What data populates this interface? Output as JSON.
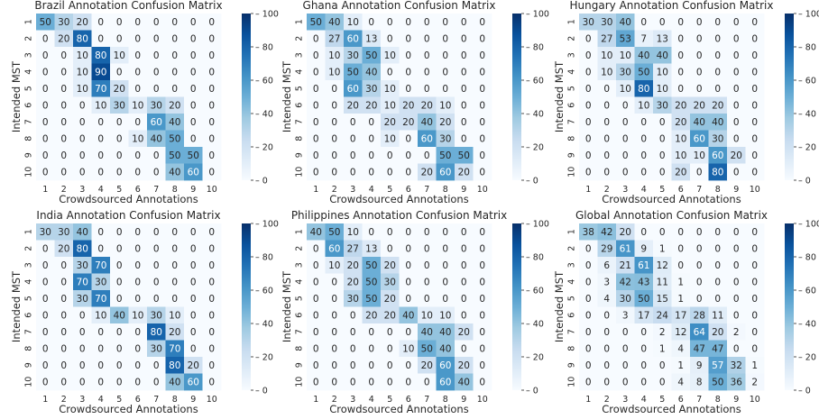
{
  "chart_data": [
    {
      "type": "heatmap",
      "title": "Brazil Annotation Confusion Matrix",
      "xlabel": "Crowdsourced Annotations",
      "ylabel": "Intended MST",
      "x_categories": [
        "1",
        "2",
        "3",
        "4",
        "5",
        "6",
        "7",
        "8",
        "9",
        "10"
      ],
      "y_categories": [
        "1",
        "2",
        "3",
        "4",
        "5",
        "6",
        "7",
        "8",
        "9",
        "10"
      ],
      "color_range": [
        0,
        100
      ],
      "colorbar_ticks": [
        "0",
        "20",
        "40",
        "60",
        "80",
        "100"
      ],
      "values": [
        [
          50,
          30,
          20,
          0,
          0,
          0,
          0,
          0,
          0,
          0
        ],
        [
          0,
          20,
          80,
          0,
          0,
          0,
          0,
          0,
          0,
          0
        ],
        [
          0,
          0,
          10,
          80,
          10,
          0,
          0,
          0,
          0,
          0
        ],
        [
          0,
          0,
          10,
          90,
          0,
          0,
          0,
          0,
          0,
          0
        ],
        [
          0,
          0,
          10,
          70,
          20,
          0,
          0,
          0,
          0,
          0
        ],
        [
          0,
          0,
          0,
          10,
          30,
          10,
          30,
          20,
          0,
          0
        ],
        [
          0,
          0,
          0,
          0,
          0,
          0,
          60,
          40,
          0,
          0
        ],
        [
          0,
          0,
          0,
          0,
          0,
          10,
          40,
          50,
          0,
          0
        ],
        [
          0,
          0,
          0,
          0,
          0,
          0,
          0,
          50,
          50,
          0
        ],
        [
          0,
          0,
          0,
          0,
          0,
          0,
          0,
          40,
          60,
          0
        ]
      ]
    },
    {
      "type": "heatmap",
      "title": "Ghana Annotation Confusion Matrix",
      "xlabel": "Crowdsourced Annotations",
      "ylabel": "Intended MST",
      "x_categories": [
        "1",
        "2",
        "3",
        "4",
        "5",
        "6",
        "7",
        "8",
        "9",
        "10"
      ],
      "y_categories": [
        "1",
        "2",
        "3",
        "4",
        "5",
        "6",
        "7",
        "8",
        "9",
        "10"
      ],
      "color_range": [
        0,
        100
      ],
      "colorbar_ticks": [
        "0",
        "20",
        "40",
        "60",
        "80",
        "100"
      ],
      "values": [
        [
          50,
          40,
          10,
          0,
          0,
          0,
          0,
          0,
          0,
          0
        ],
        [
          0,
          27,
          60,
          13,
          0,
          0,
          0,
          0,
          0,
          0
        ],
        [
          0,
          10,
          30,
          50,
          10,
          0,
          0,
          0,
          0,
          0
        ],
        [
          0,
          10,
          50,
          40,
          0,
          0,
          0,
          0,
          0,
          0
        ],
        [
          0,
          0,
          60,
          30,
          10,
          0,
          0,
          0,
          0,
          0
        ],
        [
          0,
          0,
          20,
          20,
          10,
          20,
          20,
          10,
          0,
          0
        ],
        [
          0,
          0,
          0,
          0,
          20,
          20,
          40,
          20,
          0,
          0
        ],
        [
          0,
          0,
          0,
          0,
          10,
          0,
          60,
          30,
          0,
          0
        ],
        [
          0,
          0,
          0,
          0,
          0,
          0,
          0,
          50,
          50,
          0
        ],
        [
          0,
          0,
          0,
          0,
          0,
          0,
          20,
          60,
          20,
          0
        ]
      ]
    },
    {
      "type": "heatmap",
      "title": "Hungary Annotation Confusion Matrix",
      "xlabel": "Crowdsourced Annotations",
      "ylabel": "Intended MST",
      "x_categories": [
        "1",
        "2",
        "3",
        "4",
        "5",
        "6",
        "7",
        "8",
        "9",
        "10"
      ],
      "y_categories": [
        "1",
        "2",
        "3",
        "4",
        "5",
        "6",
        "7",
        "8",
        "9",
        "10"
      ],
      "color_range": [
        0,
        100
      ],
      "colorbar_ticks": [
        "0",
        "20",
        "40",
        "60",
        "80",
        "100"
      ],
      "values": [
        [
          30,
          30,
          40,
          0,
          0,
          0,
          0,
          0,
          0,
          0
        ],
        [
          0,
          27,
          53,
          7,
          13,
          0,
          0,
          0,
          0,
          0
        ],
        [
          0,
          10,
          10,
          40,
          40,
          0,
          0,
          0,
          0,
          0
        ],
        [
          0,
          10,
          30,
          50,
          10,
          0,
          0,
          0,
          0,
          0
        ],
        [
          0,
          0,
          10,
          80,
          10,
          0,
          0,
          0,
          0,
          0
        ],
        [
          0,
          0,
          0,
          10,
          30,
          20,
          20,
          20,
          0,
          0
        ],
        [
          0,
          0,
          0,
          0,
          0,
          20,
          40,
          40,
          0,
          0
        ],
        [
          0,
          0,
          0,
          0,
          0,
          10,
          60,
          30,
          0,
          0
        ],
        [
          0,
          0,
          0,
          0,
          0,
          10,
          10,
          60,
          20,
          0
        ],
        [
          0,
          0,
          0,
          0,
          0,
          20,
          0,
          80,
          0,
          0
        ]
      ]
    },
    {
      "type": "heatmap",
      "title": "India Annotation Confusion Matrix",
      "xlabel": "Crowdsourced Annotations",
      "ylabel": "Intended MST",
      "x_categories": [
        "1",
        "2",
        "3",
        "4",
        "5",
        "6",
        "7",
        "8",
        "9",
        "10"
      ],
      "y_categories": [
        "1",
        "2",
        "3",
        "4",
        "5",
        "6",
        "7",
        "8",
        "9",
        "10"
      ],
      "color_range": [
        0,
        100
      ],
      "colorbar_ticks": [
        "0",
        "20",
        "40",
        "60",
        "80",
        "100"
      ],
      "values": [
        [
          30,
          30,
          40,
          0,
          0,
          0,
          0,
          0,
          0,
          0
        ],
        [
          0,
          20,
          80,
          0,
          0,
          0,
          0,
          0,
          0,
          0
        ],
        [
          0,
          0,
          30,
          70,
          0,
          0,
          0,
          0,
          0,
          0
        ],
        [
          0,
          0,
          70,
          30,
          0,
          0,
          0,
          0,
          0,
          0
        ],
        [
          0,
          0,
          30,
          70,
          0,
          0,
          0,
          0,
          0,
          0
        ],
        [
          0,
          0,
          0,
          10,
          40,
          10,
          30,
          10,
          0,
          0
        ],
        [
          0,
          0,
          0,
          0,
          0,
          0,
          80,
          20,
          0,
          0
        ],
        [
          0,
          0,
          0,
          0,
          0,
          0,
          30,
          70,
          0,
          0
        ],
        [
          0,
          0,
          0,
          0,
          0,
          0,
          0,
          80,
          20,
          0
        ],
        [
          0,
          0,
          0,
          0,
          0,
          0,
          0,
          40,
          60,
          0
        ]
      ]
    },
    {
      "type": "heatmap",
      "title": "Philippines Annotation Confusion Matrix",
      "xlabel": "Crowdsourced Annotations",
      "ylabel": "Intended MST",
      "x_categories": [
        "1",
        "2",
        "3",
        "4",
        "5",
        "6",
        "7",
        "8",
        "9",
        "10"
      ],
      "y_categories": [
        "1",
        "2",
        "3",
        "4",
        "5",
        "6",
        "7",
        "8",
        "9",
        "10"
      ],
      "color_range": [
        0,
        100
      ],
      "colorbar_ticks": [
        "0",
        "20",
        "40",
        "60",
        "80",
        "100"
      ],
      "values": [
        [
          40,
          50,
          10,
          0,
          0,
          0,
          0,
          0,
          0,
          0
        ],
        [
          0,
          60,
          27,
          13,
          0,
          0,
          0,
          0,
          0,
          0
        ],
        [
          0,
          10,
          20,
          50,
          20,
          0,
          0,
          0,
          0,
          0
        ],
        [
          0,
          0,
          20,
          50,
          30,
          0,
          0,
          0,
          0,
          0
        ],
        [
          0,
          0,
          30,
          50,
          20,
          0,
          0,
          0,
          0,
          0
        ],
        [
          0,
          0,
          0,
          20,
          20,
          40,
          10,
          10,
          0,
          0
        ],
        [
          0,
          0,
          0,
          0,
          0,
          0,
          40,
          40,
          20,
          0
        ],
        [
          0,
          0,
          0,
          0,
          0,
          10,
          50,
          40,
          0,
          0
        ],
        [
          0,
          0,
          0,
          0,
          0,
          0,
          20,
          60,
          20,
          0
        ],
        [
          0,
          0,
          0,
          0,
          0,
          0,
          0,
          60,
          40,
          0
        ]
      ]
    },
    {
      "type": "heatmap",
      "title": "Global Annotation Confusion Matrix",
      "xlabel": "Crowdsourced Annotations",
      "ylabel": "Intended MST",
      "x_categories": [
        "1",
        "2",
        "3",
        "4",
        "5",
        "6",
        "7",
        "8",
        "9",
        "10"
      ],
      "y_categories": [
        "1",
        "2",
        "3",
        "4",
        "5",
        "6",
        "7",
        "8",
        "9",
        "10"
      ],
      "color_range": [
        0,
        100
      ],
      "colorbar_ticks": [
        "0",
        "20",
        "40",
        "60",
        "80",
        "100"
      ],
      "values": [
        [
          38,
          42,
          20,
          0,
          0,
          0,
          0,
          0,
          0,
          0
        ],
        [
          0,
          29,
          61,
          9,
          1,
          0,
          0,
          0,
          0,
          0
        ],
        [
          0,
          6,
          21,
          61,
          12,
          0,
          0,
          0,
          0,
          0
        ],
        [
          0,
          3,
          42,
          43,
          11,
          1,
          0,
          0,
          0,
          0
        ],
        [
          0,
          4,
          30,
          50,
          15,
          1,
          0,
          0,
          0,
          0
        ],
        [
          0,
          0,
          3,
          17,
          24,
          17,
          28,
          11,
          0,
          0
        ],
        [
          0,
          0,
          0,
          0,
          2,
          12,
          64,
          20,
          2,
          0
        ],
        [
          0,
          0,
          0,
          0,
          1,
          4,
          47,
          47,
          0,
          0
        ],
        [
          0,
          0,
          0,
          0,
          0,
          1,
          9,
          57,
          32,
          1
        ],
        [
          0,
          0,
          0,
          0,
          0,
          4,
          8,
          50,
          36,
          2
        ]
      ]
    }
  ]
}
